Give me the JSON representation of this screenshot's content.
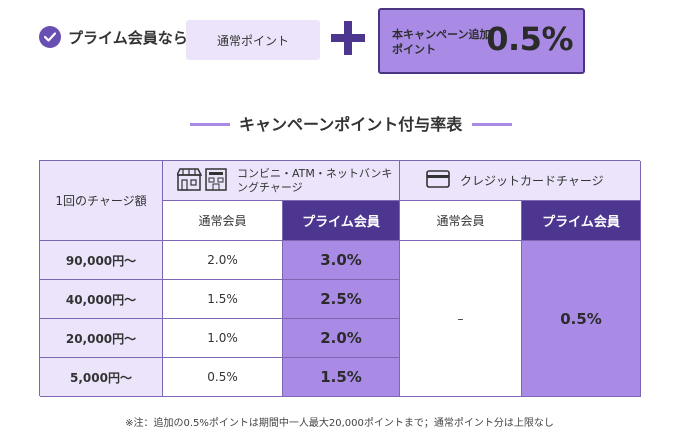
{
  "banner": {
    "prime_label": "プライム会員なら",
    "normal_point_label": "通常ポイント",
    "campaign_label": "本キャンペーン追加ポイント",
    "campaign_rate": "0.5%",
    "accent_color": "#a98be6",
    "dark_color": "#4d3690"
  },
  "title": "キャンペーンポイント付与率表",
  "table": {
    "amount_header": "1回のチャージ額",
    "convenience_header": "コンビニ・ATM・ネットバンキングチャージ",
    "card_header": "クレジットカードチャージ",
    "normal_member": "通常会員",
    "prime_member": "プライム会員",
    "rows": [
      {
        "amount": "90,000円〜",
        "normal": "2.0%",
        "prime": "3.0%"
      },
      {
        "amount": "40,000円〜",
        "normal": "1.5%",
        "prime": "2.5%"
      },
      {
        "amount": "20,000円〜",
        "normal": "1.0%",
        "prime": "2.0%"
      },
      {
        "amount": "5,000円〜",
        "normal": "0.5%",
        "prime": "1.5%"
      }
    ],
    "card_normal_value": "–",
    "card_prime_value": "0.5%"
  },
  "footnote": "※注：追加の0.5%ポイントは期間中一人最大20,000ポイントまで；通常ポイント分は上限なし"
}
